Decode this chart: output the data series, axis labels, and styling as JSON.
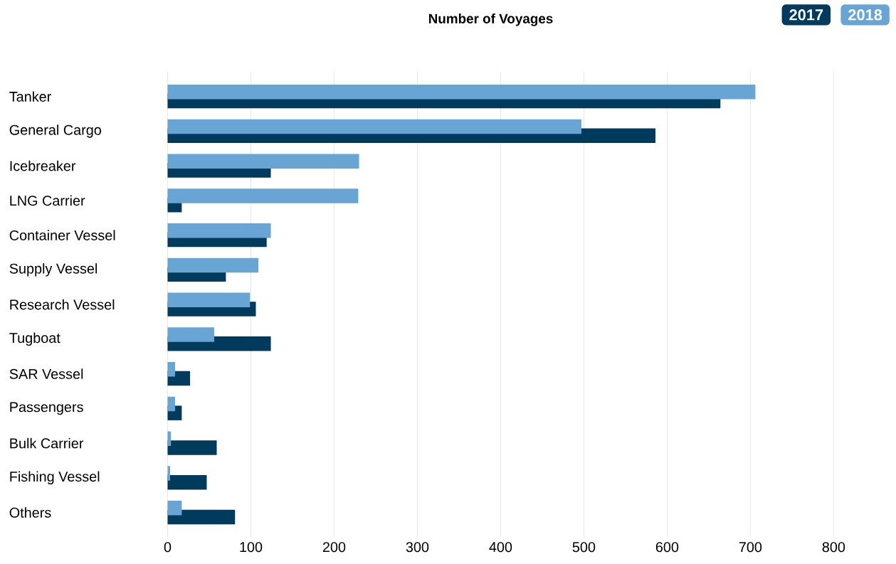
{
  "chart_data": {
    "type": "bar",
    "orientation": "horizontal",
    "title": "Number of Voyages",
    "categories": [
      "Tanker",
      "General Cargo",
      "Icebreaker",
      "LNG Carrier",
      "Container Vessel",
      "Supply Vessel",
      "Research Vessel",
      "Tugboat",
      "SAR Vessel",
      "Passengers",
      "Bulk Carrier",
      "Fishing Vessel",
      "Others"
    ],
    "series": [
      {
        "name": "2017",
        "color": "#003a5d",
        "values": [
          664,
          586,
          124,
          17,
          119,
          70,
          106,
          124,
          27,
          17,
          59,
          47,
          81
        ]
      },
      {
        "name": "2018",
        "color": "#69a5d4",
        "values": [
          706,
          497,
          230,
          229,
          124,
          109,
          99,
          56,
          9,
          9,
          4,
          3,
          17
        ]
      }
    ],
    "xlim": [
      0,
      800
    ],
    "xticks": [
      0,
      100,
      200,
      300,
      400,
      500,
      600,
      700,
      800
    ],
    "grid": "x",
    "legend": "top right"
  }
}
